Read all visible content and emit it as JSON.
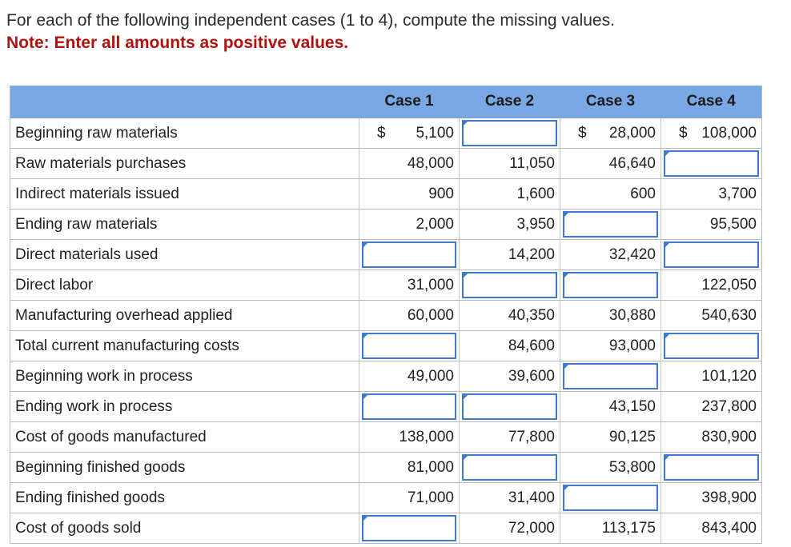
{
  "instructions": "For each of the following independent cases (1 to 4), compute the missing values.",
  "note": "Note: Enter all amounts as positive values.",
  "columns": [
    "Case 1",
    "Case 2",
    "Case 3",
    "Case 4"
  ],
  "colors": {
    "header_bg": "#7aa8e4",
    "input_border": "#3d7bd1",
    "note_red": "#b0120f"
  },
  "rows": [
    {
      "label": "Beginning raw materials",
      "cells": [
        {
          "v": "5,100",
          "dollar": "$"
        },
        {
          "input": true
        },
        {
          "v": "28,000",
          "dollar": "$"
        },
        {
          "v": "108,000",
          "dollar": "$"
        }
      ]
    },
    {
      "label": "Raw materials purchases",
      "cells": [
        {
          "v": "48,000"
        },
        {
          "v": "11,050"
        },
        {
          "v": "46,640"
        },
        {
          "input": true
        }
      ]
    },
    {
      "label": "Indirect materials issued",
      "cells": [
        {
          "v": "900"
        },
        {
          "v": "1,600"
        },
        {
          "v": "600"
        },
        {
          "v": "3,700"
        }
      ]
    },
    {
      "label": "Ending raw materials",
      "cells": [
        {
          "v": "2,000"
        },
        {
          "v": "3,950"
        },
        {
          "input": true
        },
        {
          "v": "95,500"
        }
      ]
    },
    {
      "label": "Direct materials used",
      "cells": [
        {
          "input": true
        },
        {
          "v": "14,200"
        },
        {
          "v": "32,420"
        },
        {
          "input": true
        }
      ]
    },
    {
      "label": "Direct labor",
      "cells": [
        {
          "v": "31,000"
        },
        {
          "input": true
        },
        {
          "input": true
        },
        {
          "v": "122,050"
        }
      ]
    },
    {
      "label": "Manufacturing overhead applied",
      "cells": [
        {
          "v": "60,000"
        },
        {
          "v": "40,350"
        },
        {
          "v": "30,880"
        },
        {
          "v": "540,630"
        }
      ]
    },
    {
      "label": "Total current manufacturing costs",
      "cells": [
        {
          "input": true
        },
        {
          "v": "84,600"
        },
        {
          "v": "93,000"
        },
        {
          "input": true
        }
      ]
    },
    {
      "label": "Beginning work in process",
      "cells": [
        {
          "v": "49,000"
        },
        {
          "v": "39,600"
        },
        {
          "input": true
        },
        {
          "v": "101,120"
        }
      ]
    },
    {
      "label": "Ending work in process",
      "cells": [
        {
          "input": true
        },
        {
          "input": true
        },
        {
          "v": "43,150"
        },
        {
          "v": "237,800"
        }
      ]
    },
    {
      "label": "Cost of goods manufactured",
      "cells": [
        {
          "v": "138,000"
        },
        {
          "v": "77,800"
        },
        {
          "v": "90,125"
        },
        {
          "v": "830,900"
        }
      ]
    },
    {
      "label": "Beginning finished goods",
      "cells": [
        {
          "v": "81,000"
        },
        {
          "input": true
        },
        {
          "v": "53,800"
        },
        {
          "input": true
        }
      ]
    },
    {
      "label": "Ending finished goods",
      "cells": [
        {
          "v": "71,000"
        },
        {
          "v": "31,400"
        },
        {
          "input": true
        },
        {
          "v": "398,900"
        }
      ]
    },
    {
      "label": "Cost of goods sold",
      "cells": [
        {
          "input": true
        },
        {
          "v": "72,000"
        },
        {
          "v": "113,175"
        },
        {
          "v": "843,400"
        }
      ]
    }
  ]
}
